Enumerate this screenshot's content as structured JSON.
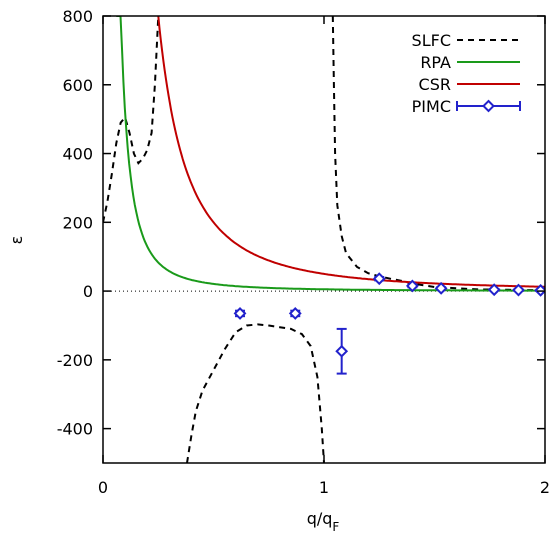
{
  "chart_data": {
    "type": "line",
    "xlabel": "q/q",
    "xlabel_sub": "F",
    "ylabel": "ε",
    "xlim": [
      0,
      2
    ],
    "ylim": [
      -500,
      800
    ],
    "xticks": [
      0,
      1,
      2
    ],
    "xtick_labels": [
      "0",
      "1",
      "2"
    ],
    "yticks": [
      -400,
      -200,
      0,
      200,
      400,
      600,
      800
    ],
    "ytick_labels": [
      "-400",
      "-200",
      "0",
      "200",
      "400",
      "600",
      "800"
    ],
    "grid": false,
    "legend_position": "top-right",
    "zero_line": "dotted",
    "series": [
      {
        "name": "SLFC",
        "color": "#000000",
        "style": "dashed",
        "segments": [
          [
            [
              0.0,
              200
            ],
            [
              0.02,
              260
            ],
            [
              0.04,
              340
            ],
            [
              0.06,
              430
            ],
            [
              0.08,
              490
            ],
            [
              0.1,
              505
            ],
            [
              0.12,
              460
            ],
            [
              0.14,
              400
            ],
            [
              0.16,
              372
            ],
            [
              0.18,
              385
            ],
            [
              0.2,
              410
            ],
            [
              0.22,
              460
            ],
            [
              0.235,
              600
            ],
            [
              0.25,
              800
            ]
          ],
          [
            [
              0.38,
              -500
            ],
            [
              0.4,
              -420
            ],
            [
              0.42,
              -350
            ],
            [
              0.45,
              -290
            ],
            [
              0.5,
              -230
            ],
            [
              0.55,
              -170
            ],
            [
              0.6,
              -120
            ],
            [
              0.65,
              -100
            ],
            [
              0.7,
              -97
            ],
            [
              0.75,
              -100
            ],
            [
              0.8,
              -105
            ],
            [
              0.85,
              -110
            ],
            [
              0.9,
              -125
            ],
            [
              0.94,
              -160
            ],
            [
              0.97,
              -250
            ],
            [
              0.99,
              -400
            ],
            [
              1.0,
              -500
            ]
          ],
          [
            [
              1.04,
              800
            ],
            [
              1.045,
              600
            ],
            [
              1.05,
              400
            ],
            [
              1.06,
              250
            ],
            [
              1.08,
              160
            ],
            [
              1.1,
              110
            ],
            [
              1.15,
              70
            ],
            [
              1.2,
              52
            ],
            [
              1.25,
              43
            ],
            [
              1.3,
              36
            ],
            [
              1.35,
              30
            ],
            [
              1.4,
              22
            ],
            [
              1.5,
              12
            ],
            [
              1.6,
              8
            ],
            [
              1.7,
              5
            ],
            [
              1.8,
              4
            ],
            [
              1.9,
              3
            ],
            [
              2.0,
              2
            ]
          ]
        ]
      },
      {
        "name": "RPA",
        "color": "#1a9a1a",
        "style": "solid",
        "curve": {
          "a": 5.2,
          "p": 2,
          "xmin": 0.06,
          "xmax": 2.0
        }
      },
      {
        "name": "CSR",
        "color": "#c00000",
        "style": "solid",
        "curve": {
          "a": 50,
          "p": 2,
          "xmin": 0.25,
          "xmax": 2.0
        }
      },
      {
        "name": "PIMC",
        "color": "#2222cc",
        "style": "points-errorbars",
        "points": [
          {
            "x": 0.62,
            "y": -65,
            "err": 8
          },
          {
            "x": 0.87,
            "y": -65,
            "err": 8
          },
          {
            "x": 1.08,
            "y": -175,
            "err": 65
          },
          {
            "x": 1.25,
            "y": 36,
            "err": 5
          },
          {
            "x": 1.4,
            "y": 15,
            "err": 4
          },
          {
            "x": 1.53,
            "y": 8,
            "err": 3
          },
          {
            "x": 1.77,
            "y": 4,
            "err": 2
          },
          {
            "x": 1.88,
            "y": 3,
            "err": 2
          },
          {
            "x": 1.98,
            "y": 2,
            "err": 2
          }
        ]
      }
    ]
  }
}
